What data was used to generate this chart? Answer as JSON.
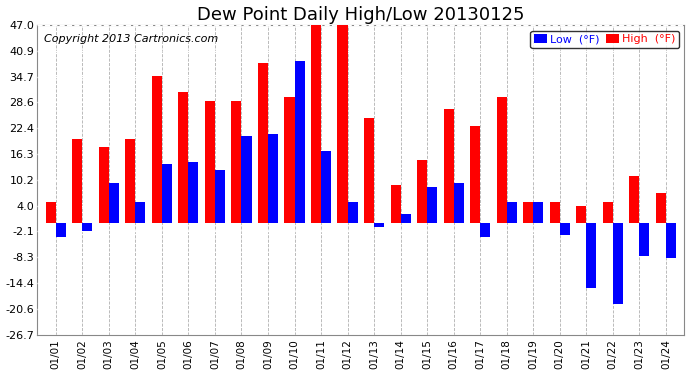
{
  "title": "Dew Point Daily High/Low 20130125",
  "copyright": "Copyright 2013 Cartronics.com",
  "legend_low_label": "Low  (°F)",
  "legend_high_label": "High  (°F)",
  "days": [
    "01/01",
    "01/02",
    "01/03",
    "01/04",
    "01/05",
    "01/06",
    "01/07",
    "01/08",
    "01/09",
    "01/10",
    "01/11",
    "01/12",
    "01/13",
    "01/14",
    "01/15",
    "01/16",
    "01/17",
    "01/18",
    "01/19",
    "01/20",
    "01/21",
    "01/22",
    "01/23",
    "01/24"
  ],
  "high": [
    5.0,
    20.0,
    18.0,
    20.0,
    35.0,
    31.0,
    29.0,
    29.0,
    38.0,
    30.0,
    47.0,
    47.0,
    25.0,
    9.0,
    15.0,
    27.0,
    23.0,
    30.0,
    5.0,
    5.0,
    4.0,
    5.0,
    11.0,
    7.0
  ],
  "low": [
    -3.5,
    -2.0,
    9.5,
    5.0,
    14.0,
    14.5,
    12.5,
    20.5,
    21.0,
    38.5,
    17.0,
    5.0,
    -1.0,
    2.0,
    8.5,
    9.5,
    -3.5,
    5.0,
    5.0,
    -3.0,
    -15.5,
    -19.5,
    -8.0,
    -8.5
  ],
  "ylim_min": -26.7,
  "ylim_max": 47.0,
  "yticks": [
    47.0,
    40.9,
    34.7,
    28.6,
    22.4,
    16.3,
    10.2,
    4.0,
    -2.1,
    -8.3,
    -14.4,
    -20.6,
    -26.7
  ],
  "high_color": "#ff0000",
  "low_color": "#0000ff",
  "bg_color": "#ffffff",
  "grid_color": "#b0b0b0",
  "title_fontsize": 13,
  "copyright_fontsize": 8,
  "bar_width": 0.38
}
